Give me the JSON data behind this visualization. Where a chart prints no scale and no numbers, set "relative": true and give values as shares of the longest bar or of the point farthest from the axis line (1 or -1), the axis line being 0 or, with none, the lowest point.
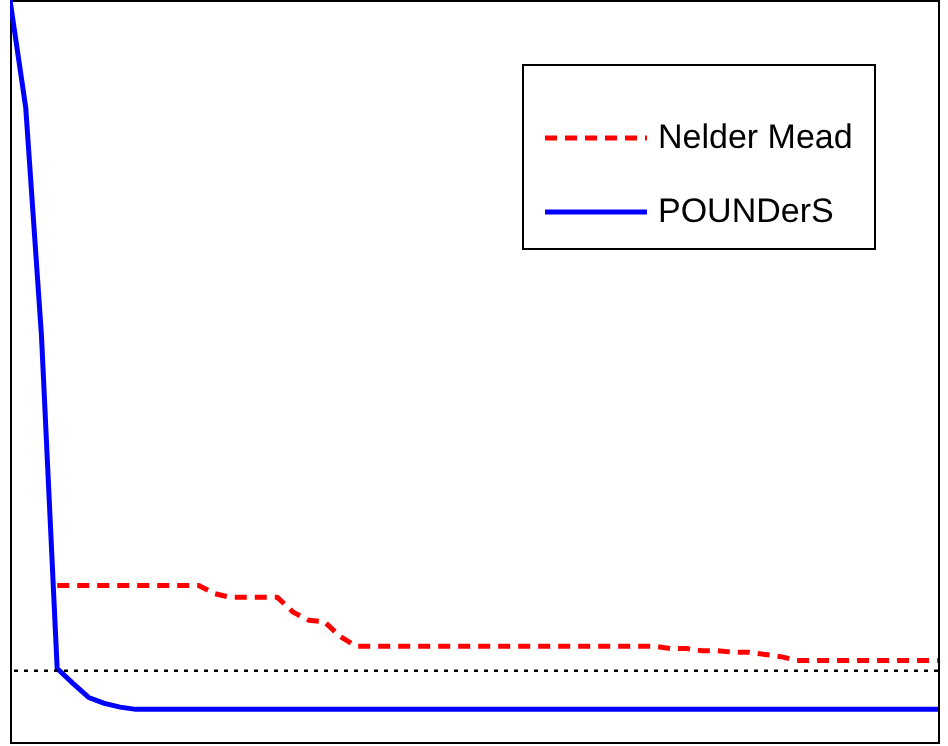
{
  "chart_data": {
    "type": "line",
    "relative": true,
    "categories": [
      null,
      null,
      null,
      null,
      null,
      null,
      null,
      null,
      null,
      null,
      null,
      null,
      null,
      null,
      null,
      null,
      null,
      null,
      null,
      null,
      null,
      null,
      null,
      null,
      null,
      null,
      null,
      null,
      null,
      null,
      null,
      null,
      null,
      null,
      null,
      null,
      null,
      null,
      null,
      null,
      null,
      null,
      null,
      null,
      null,
      null,
      null,
      null,
      null,
      null,
      null,
      null,
      null,
      null,
      null,
      null,
      null,
      null,
      null,
      null
    ],
    "series": [
      {
        "name": "Nelder Mead",
        "color": "#ff0000",
        "line_style": "dashed",
        "values": [
          null,
          null,
          null,
          0.211,
          0.211,
          0.211,
          0.211,
          0.211,
          0.211,
          0.211,
          0.211,
          0.211,
          0.211,
          0.2,
          0.195,
          0.195,
          0.195,
          0.195,
          0.175,
          0.164,
          0.162,
          0.142,
          0.129,
          0.129,
          0.129,
          0.129,
          0.129,
          0.129,
          0.129,
          0.129,
          0.129,
          0.129,
          0.129,
          0.129,
          0.129,
          0.129,
          0.129,
          0.129,
          0.129,
          0.129,
          0.129,
          0.129,
          0.126,
          0.126,
          0.123,
          0.123,
          0.121,
          0.121,
          0.118,
          0.115,
          0.11,
          0.11,
          0.11,
          0.11,
          0.11,
          0.11,
          0.11,
          0.11,
          0.11,
          0.11
        ]
      },
      {
        "name": "POUNDerS",
        "color": "#0000ff",
        "line_style": "solid",
        "values": [
          1,
          0.855,
          0.548,
          0.099,
          0.079,
          0.06,
          0.052,
          0.047,
          0.044,
          0.044,
          0.044,
          0.044,
          0.044,
          0.044,
          0.044,
          0.044,
          0.044,
          0.044,
          0.044,
          0.044,
          0.044,
          0.044,
          0.044,
          0.044,
          0.044,
          0.044,
          0.044,
          0.044,
          0.044,
          0.044,
          0.044,
          0.044,
          0.044,
          0.044,
          0.044,
          0.044,
          0.044,
          0.044,
          0.044,
          0.044,
          0.044,
          0.044,
          0.044,
          0.044,
          0.044,
          0.044,
          0.044,
          0.044,
          0.044,
          0.044,
          0.044,
          0.044,
          0.044,
          0.044,
          0.044,
          0.044,
          0.044,
          0.044,
          0.044,
          0.044
        ]
      }
    ],
    "ref_lines": [
      {
        "axis": "y",
        "value": 0.096,
        "color": "#000000",
        "line_style": "dotted"
      }
    ],
    "legend": "top right"
  }
}
